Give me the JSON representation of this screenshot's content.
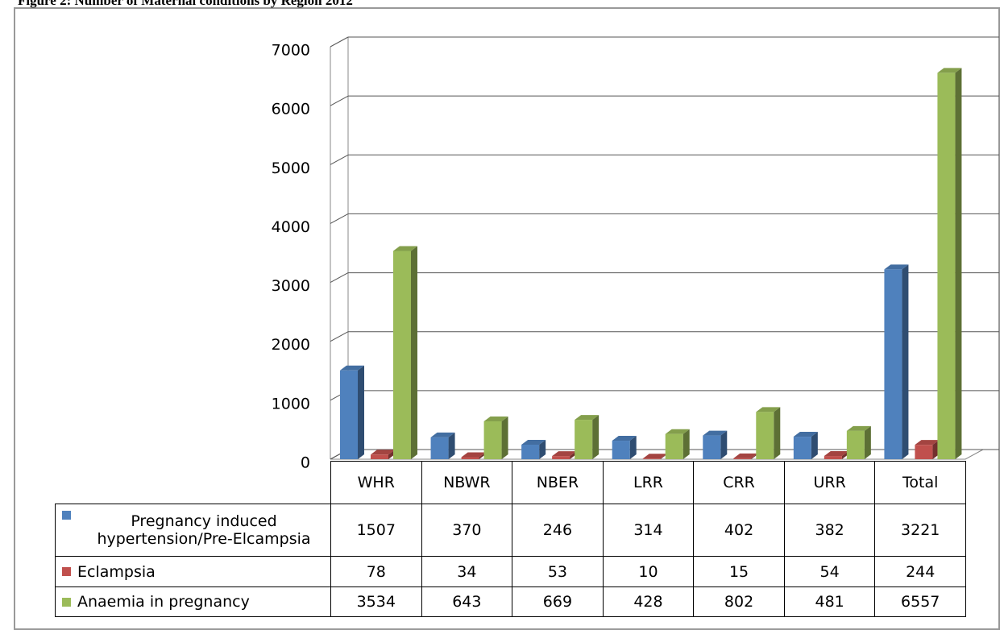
{
  "chart_data": {
    "type": "bar3d",
    "title": "Figure 2: Number of Maternal conditions by Region 2012",
    "categories": [
      "WHR",
      "NBWR",
      "NBER",
      "LRR",
      "CRR",
      "URR",
      "Total"
    ],
    "series": [
      {
        "name": "Pregnancy induced hypertension/Pre-Elcampsia",
        "color": "#4f81bd",
        "values": [
          1507,
          370,
          246,
          314,
          402,
          382,
          3221
        ]
      },
      {
        "name": "Eclampsia",
        "color": "#c0504d",
        "values": [
          78,
          34,
          53,
          10,
          15,
          54,
          244
        ]
      },
      {
        "name": "Anaemia in pregnancy",
        "color": "#9bbb59",
        "values": [
          3534,
          643,
          669,
          428,
          802,
          481,
          6557
        ]
      }
    ],
    "ylim": [
      0,
      7000
    ],
    "yticks": [
      0,
      1000,
      2000,
      3000,
      4000,
      5000,
      6000,
      7000
    ],
    "grid": true
  }
}
